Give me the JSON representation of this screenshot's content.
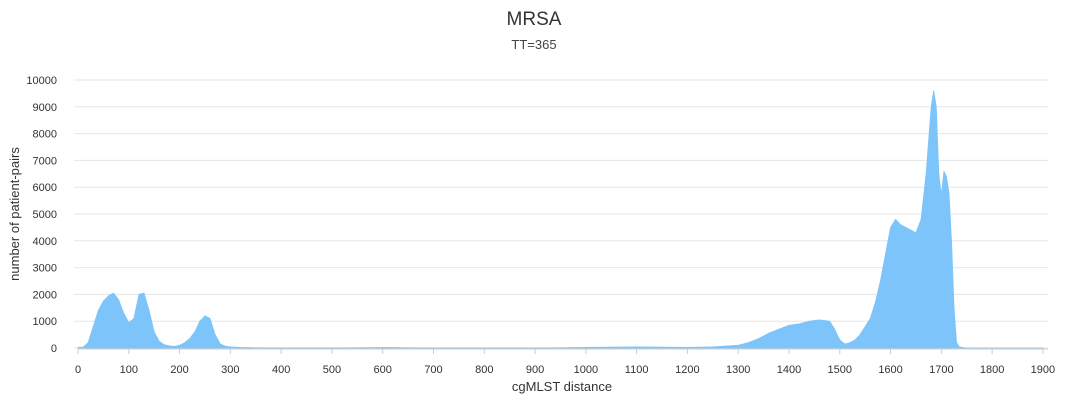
{
  "chart_data": {
    "type": "area",
    "title": "MRSA",
    "subtitle": "TT=365",
    "xlabel": "cgMLST distance",
    "ylabel": "number of patient-pairs",
    "xlim": [
      0,
      1910
    ],
    "ylim": [
      0,
      10000
    ],
    "xticks": [
      "0",
      "100",
      "200",
      "300",
      "400",
      "500",
      "600",
      "700",
      "800",
      "900",
      "1000",
      "1100",
      "1200",
      "1300",
      "1400",
      "1500",
      "1600",
      "1700",
      "1800",
      "1900"
    ],
    "yticks": [
      "0",
      "1000",
      "2000",
      "3000",
      "4000",
      "5000",
      "6000",
      "7000",
      "8000",
      "9000",
      "10000"
    ],
    "grid": true,
    "legend": "none",
    "colors": {
      "fill": "#7cc4fa",
      "grid": "#e6e6e6",
      "axis": "#cccccc"
    },
    "series": [
      {
        "x": [
          0,
          10,
          20,
          30,
          40,
          50,
          60,
          70,
          80,
          90,
          100,
          110,
          120,
          130,
          140,
          150,
          160,
          170,
          180,
          190,
          200,
          210,
          220,
          230,
          240,
          250,
          260,
          270,
          280,
          290,
          300,
          320,
          350,
          400,
          450,
          500,
          550,
          600,
          650,
          700,
          750,
          800,
          850,
          900,
          950,
          1000,
          1050,
          1100,
          1150,
          1200,
          1250,
          1300,
          1320,
          1340,
          1360,
          1380,
          1400,
          1420,
          1440,
          1460,
          1480,
          1490,
          1500,
          1510,
          1520,
          1530,
          1540,
          1550,
          1560,
          1570,
          1580,
          1590,
          1600,
          1610,
          1620,
          1630,
          1640,
          1650,
          1660,
          1670,
          1680,
          1685,
          1690,
          1695,
          1700,
          1705,
          1710,
          1715,
          1720,
          1725,
          1730,
          1735,
          1740,
          1745,
          1750,
          1760,
          1780,
          1800,
          1850,
          1900
        ],
        "values": [
          20,
          30,
          200,
          800,
          1400,
          1750,
          1950,
          2050,
          1800,
          1300,
          950,
          1100,
          2000,
          2050,
          1400,
          600,
          250,
          120,
          80,
          60,
          100,
          200,
          350,
          600,
          1000,
          1200,
          1100,
          500,
          150,
          70,
          40,
          20,
          10,
          5,
          5,
          5,
          10,
          20,
          10,
          5,
          5,
          5,
          5,
          5,
          10,
          20,
          30,
          40,
          30,
          20,
          40,
          100,
          200,
          350,
          550,
          700,
          850,
          900,
          1000,
          1050,
          1000,
          700,
          300,
          150,
          200,
          300,
          500,
          800,
          1100,
          1700,
          2500,
          3500,
          4500,
          4800,
          4600,
          4500,
          4400,
          4300,
          4800,
          6500,
          9000,
          9600,
          9000,
          6500,
          5700,
          6600,
          6400,
          5800,
          4000,
          1500,
          200,
          50,
          20,
          10,
          5,
          0,
          0,
          0,
          0,
          0
        ]
      }
    ]
  }
}
